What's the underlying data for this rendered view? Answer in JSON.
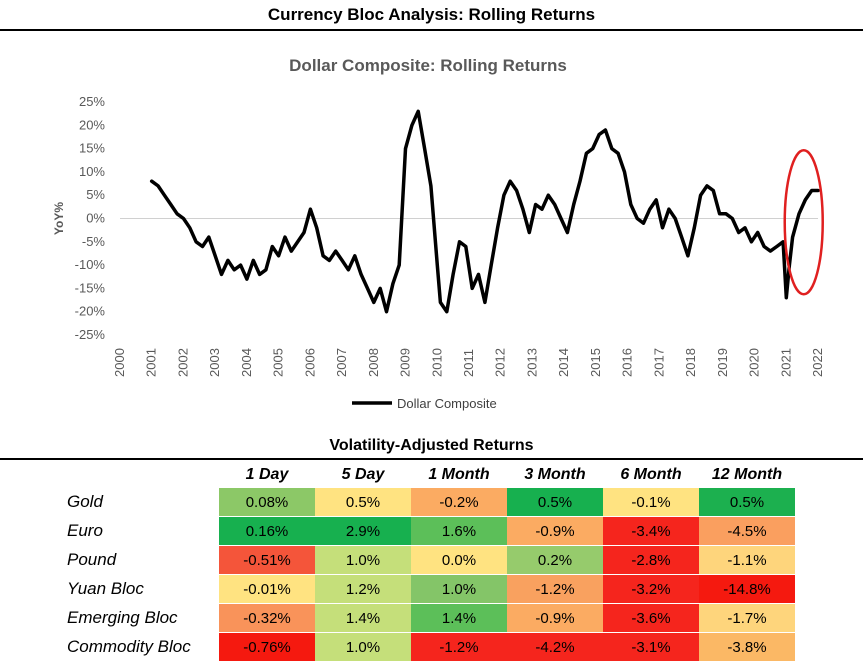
{
  "main_title": "Currency Bloc Analysis: Rolling Returns",
  "chart_data": {
    "type": "line",
    "title": "Dollar Composite: Rolling Returns",
    "ylabel": "YoY%",
    "xlabel": "",
    "ylim": [
      -25,
      25
    ],
    "xlim": [
      2000,
      2022
    ],
    "y_ticks": [
      25,
      20,
      15,
      10,
      5,
      0,
      -5,
      -10,
      -15,
      -20,
      -25
    ],
    "y_tick_labels": [
      "25%",
      "20%",
      "15%",
      "10%",
      "5%",
      "0%",
      "-5%",
      "-10%",
      "-15%",
      "-20%",
      "-25%"
    ],
    "x_ticks": [
      "2000",
      "2001",
      "2002",
      "2003",
      "2004",
      "2005",
      "2006",
      "2007",
      "2008",
      "2009",
      "2010",
      "2011",
      "2012",
      "2013",
      "2014",
      "2015",
      "2016",
      "2017",
      "2018",
      "2019",
      "2020",
      "2021",
      "2022"
    ],
    "legend": "bottom-center",
    "annotation": "red ellipse highlighting 2021-2022 rebound",
    "line_color": "#000000",
    "highlight_color": "#e02020",
    "series": [
      {
        "name": "Dollar Composite",
        "x": [
          2001.0,
          2001.2,
          2001.4,
          2001.6,
          2001.8,
          2002.0,
          2002.2,
          2002.4,
          2002.6,
          2002.8,
          2003.0,
          2003.2,
          2003.4,
          2003.6,
          2003.8,
          2004.0,
          2004.2,
          2004.4,
          2004.6,
          2004.8,
          2005.0,
          2005.2,
          2005.4,
          2005.6,
          2005.8,
          2006.0,
          2006.2,
          2006.4,
          2006.6,
          2006.8,
          2007.0,
          2007.2,
          2007.4,
          2007.6,
          2007.8,
          2008.0,
          2008.2,
          2008.4,
          2008.6,
          2008.8,
          2009.0,
          2009.2,
          2009.4,
          2009.6,
          2009.8,
          2010.0,
          2010.1,
          2010.3,
          2010.5,
          2010.7,
          2010.9,
          2011.1,
          2011.3,
          2011.5,
          2011.7,
          2011.9,
          2012.1,
          2012.3,
          2012.5,
          2012.7,
          2012.9,
          2013.1,
          2013.3,
          2013.5,
          2013.7,
          2013.9,
          2014.1,
          2014.3,
          2014.5,
          2014.7,
          2014.9,
          2015.1,
          2015.3,
          2015.5,
          2015.7,
          2015.9,
          2016.1,
          2016.3,
          2016.5,
          2016.7,
          2016.9,
          2017.1,
          2017.3,
          2017.5,
          2017.7,
          2017.9,
          2018.1,
          2018.3,
          2018.5,
          2018.7,
          2018.9,
          2019.1,
          2019.3,
          2019.5,
          2019.7,
          2019.9,
          2020.1,
          2020.3,
          2020.5,
          2020.7,
          2020.9,
          2021.0,
          2021.1,
          2021.2,
          2021.4,
          2021.6,
          2021.8,
          2022.0
        ],
        "values": [
          8,
          7,
          5,
          3,
          1,
          0,
          -2,
          -5,
          -6,
          -4,
          -8,
          -12,
          -9,
          -11,
          -10,
          -13,
          -9,
          -12,
          -11,
          -6,
          -8,
          -4,
          -7,
          -5,
          -3,
          2,
          -2,
          -8,
          -9,
          -7,
          -9,
          -11,
          -8,
          -12,
          -15,
          -18,
          -15,
          -20,
          -14,
          -10,
          15,
          20,
          23,
          15,
          7,
          -10,
          -18,
          -20,
          -12,
          -5,
          -6,
          -15,
          -12,
          -18,
          -10,
          -2,
          5,
          8,
          6,
          2,
          -3,
          3,
          2,
          5,
          3,
          0,
          -3,
          3,
          8,
          14,
          15,
          18,
          19,
          15,
          14,
          10,
          3,
          0,
          -1,
          2,
          4,
          -2,
          2,
          0,
          -4,
          -8,
          -2,
          5,
          7,
          6,
          1,
          1,
          0,
          -3,
          -2,
          -5,
          -3,
          -6,
          -7,
          -6,
          -5,
          -17,
          -10,
          -4,
          1,
          4,
          6,
          6
        ]
      }
    ]
  },
  "table": {
    "title": "Volatility-Adjusted Returns",
    "columns": [
      "1 Day",
      "5 Day",
      "1 Month",
      "3 Month",
      "6 Month",
      "12 Month"
    ],
    "rows": [
      {
        "label": "Gold",
        "cells": [
          {
            "text": "0.08%",
            "color": "#8cc867"
          },
          {
            "text": "0.5%",
            "color": "#ffe381"
          },
          {
            "text": "-0.2%",
            "color": "#fbab62"
          },
          {
            "text": "0.5%",
            "color": "#17b04f"
          },
          {
            "text": "-0.1%",
            "color": "#ffe381"
          },
          {
            "text": "0.5%",
            "color": "#1cb04f"
          }
        ]
      },
      {
        "label": "Euro",
        "cells": [
          {
            "text": "0.16%",
            "color": "#17b04f"
          },
          {
            "text": "2.9%",
            "color": "#17b04f"
          },
          {
            "text": "1.6%",
            "color": "#5cbf59"
          },
          {
            "text": "-0.9%",
            "color": "#fbab62"
          },
          {
            "text": "-3.4%",
            "color": "#f5251d"
          },
          {
            "text": "-4.5%",
            "color": "#fa9f5f"
          }
        ]
      },
      {
        "label": "Pound",
        "cells": [
          {
            "text": "-0.51%",
            "color": "#f4553a"
          },
          {
            "text": "1.0%",
            "color": "#c5df7a"
          },
          {
            "text": "0.0%",
            "color": "#ffe381"
          },
          {
            "text": "0.2%",
            "color": "#96cb6c"
          },
          {
            "text": "-2.8%",
            "color": "#f5251d"
          },
          {
            "text": "-1.1%",
            "color": "#fed57c"
          }
        ]
      },
      {
        "label": "Yuan Bloc",
        "cells": [
          {
            "text": "-0.01%",
            "color": "#ffe381"
          },
          {
            "text": "1.2%",
            "color": "#c5df7a"
          },
          {
            "text": "1.0%",
            "color": "#84c568"
          },
          {
            "text": "-1.2%",
            "color": "#f9a15f"
          },
          {
            "text": "-3.2%",
            "color": "#f5251d"
          },
          {
            "text": "-14.8%",
            "color": "#f5190f"
          }
        ]
      },
      {
        "label": "Emerging Bloc",
        "cells": [
          {
            "text": "-0.32%",
            "color": "#f9935a"
          },
          {
            "text": "1.4%",
            "color": "#c5df7a"
          },
          {
            "text": "1.4%",
            "color": "#5cbf59"
          },
          {
            "text": "-0.9%",
            "color": "#fbab62"
          },
          {
            "text": "-3.6%",
            "color": "#f5251d"
          },
          {
            "text": "-1.7%",
            "color": "#fed57c"
          }
        ]
      },
      {
        "label": "Commodity Bloc",
        "cells": [
          {
            "text": "-0.76%",
            "color": "#f5190f"
          },
          {
            "text": "1.0%",
            "color": "#c5df7a"
          },
          {
            "text": "-1.2%",
            "color": "#f5251d"
          },
          {
            "text": "-4.2%",
            "color": "#f5251d"
          },
          {
            "text": "-3.1%",
            "color": "#f5251d"
          },
          {
            "text": "-3.8%",
            "color": "#fbb865"
          }
        ]
      }
    ]
  }
}
